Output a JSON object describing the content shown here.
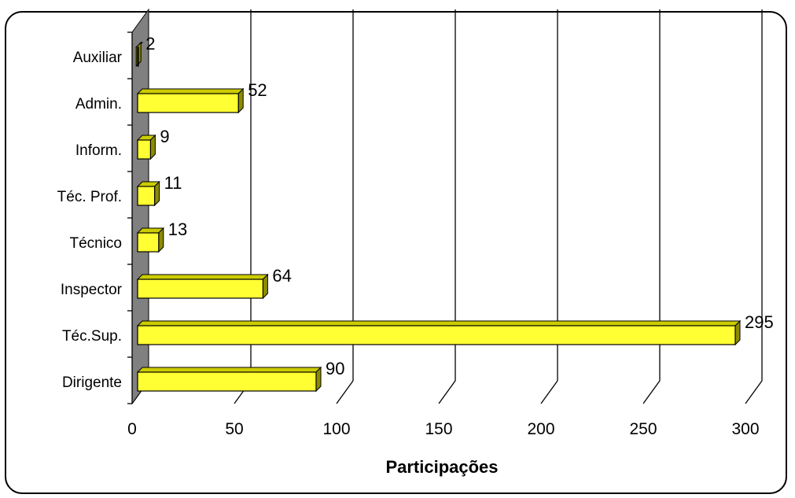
{
  "chart_data": {
    "type": "bar",
    "orientation": "horizontal",
    "style": "3d",
    "categories": [
      "Dirigente",
      "Téc.Sup.",
      "Inspector",
      "Técnico",
      "Téc. Prof.",
      "Inform.",
      "Admin.",
      "Auxiliar"
    ],
    "values": [
      90,
      295,
      64,
      13,
      11,
      9,
      52,
      2
    ],
    "value_labels": [
      "90",
      "295",
      "64",
      "13",
      "11",
      "9",
      "52",
      "2"
    ],
    "xlabel": "Participações",
    "xlim": [
      0,
      300
    ],
    "xticks": [
      "0",
      "50",
      "100",
      "150",
      "200",
      "250",
      "300"
    ],
    "grid": true,
    "legend": "none",
    "colors": {
      "bar_front": "#FFFF33",
      "bar_top": "#CCCC00",
      "bar_side": "#8C8C00",
      "wall": "#808080",
      "grid": "#000000"
    }
  }
}
